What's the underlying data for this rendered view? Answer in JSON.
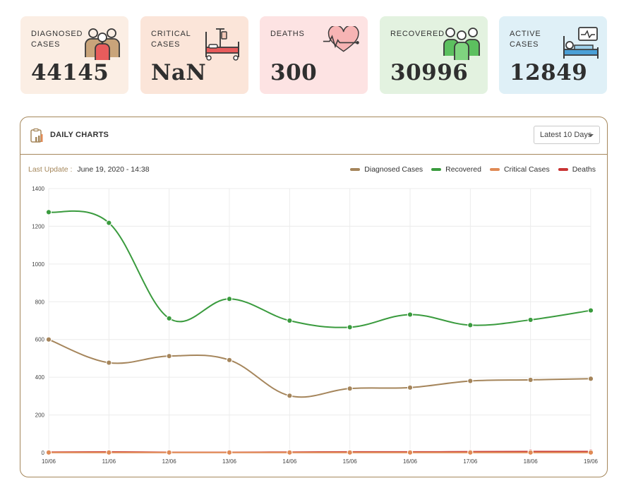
{
  "cards": [
    {
      "label": "DIAGNOSED\nCASES",
      "value": "44145",
      "bg": "#fbeee4",
      "icon": "people-icon"
    },
    {
      "label": "CRITICAL\nCASES",
      "value": "NaN",
      "bg": "#fbe5d9",
      "icon": "hospital-bed-icon"
    },
    {
      "label": "DEATHS",
      "value": "300",
      "bg": "#fde3e3",
      "icon": "heartbeat-icon"
    },
    {
      "label": "RECOVERED",
      "value": "30996",
      "bg": "#e3f2e0",
      "icon": "recovered-people-icon"
    },
    {
      "label": "ACTIVE\nCASES",
      "value": "12849",
      "bg": "#dff0f7",
      "icon": "patient-monitor-icon"
    }
  ],
  "panel": {
    "title": "DAILY CHARTS",
    "icon": "clipboard-chart-icon",
    "range_select": "Latest 10 Days",
    "last_update_label": "Last Update :",
    "last_update_value": "June 19, 2020 - 14:38"
  },
  "chart_data": {
    "type": "line",
    "categories": [
      "10/06",
      "11/06",
      "12/06",
      "13/06",
      "14/06",
      "15/06",
      "16/06",
      "17/06",
      "18/06",
      "19/06"
    ],
    "ylim": [
      0,
      1400
    ],
    "yticks": [
      "0",
      "200",
      "400",
      "600",
      "800",
      "1000",
      "1200",
      "1400"
    ],
    "grid": true,
    "legend_position": "top-right",
    "series": [
      {
        "name": "Diagnosed Cases",
        "color": "#a5855b",
        "values": [
          600,
          477,
          512,
          491,
          302,
          340,
          345,
          380,
          386,
          392
        ]
      },
      {
        "name": "Recovered",
        "color": "#3a9b3e",
        "values": [
          1275,
          1218,
          712,
          815,
          700,
          665,
          732,
          676,
          704,
          754
        ]
      },
      {
        "name": "Critical Cases",
        "color": "#e08a55",
        "values": [
          1,
          1,
          1,
          1,
          1,
          1,
          1,
          1,
          1,
          1
        ]
      },
      {
        "name": "Deaths",
        "color": "#c93434",
        "values": [
          3,
          4,
          2,
          2,
          3,
          4,
          4,
          5,
          6,
          6
        ]
      }
    ]
  }
}
